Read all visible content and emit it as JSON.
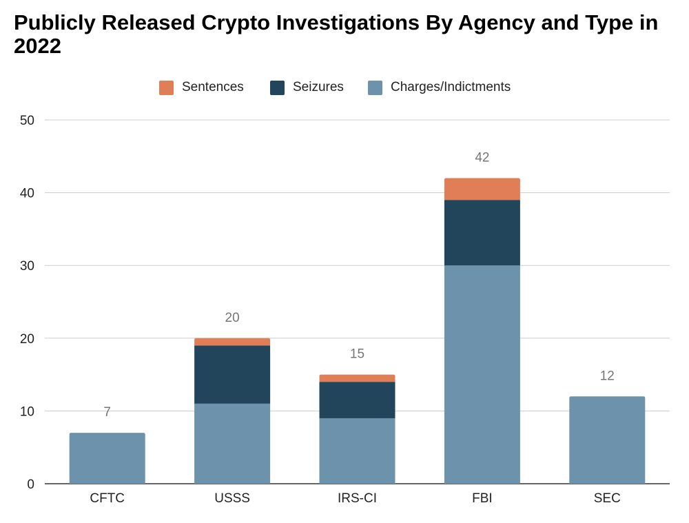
{
  "chart_data": {
    "type": "bar",
    "stacked": true,
    "title": "Publicly Released Crypto Investigations By Agency and Type in 2022",
    "categories": [
      "CFTC",
      "USSS",
      "IRS-CI",
      "FBI",
      "SEC"
    ],
    "series": [
      {
        "name": "Charges/Indictments",
        "color": "#6d92ab",
        "values": [
          7,
          11,
          9,
          30,
          12
        ]
      },
      {
        "name": "Seizures",
        "color": "#23455c",
        "values": [
          0,
          8,
          5,
          9,
          0
        ]
      },
      {
        "name": "Sentences",
        "color": "#e07f57",
        "values": [
          0,
          1,
          1,
          3,
          0
        ]
      }
    ],
    "totals": [
      "7",
      "20",
      "15",
      "42",
      "12"
    ],
    "legend_order": [
      "Sentences",
      "Seizures",
      "Charges/Indictments"
    ],
    "legend_position": "top",
    "yticks": [
      "0",
      "10",
      "20",
      "30",
      "40",
      "50"
    ],
    "ylim": [
      0,
      50
    ],
    "grid": true
  }
}
